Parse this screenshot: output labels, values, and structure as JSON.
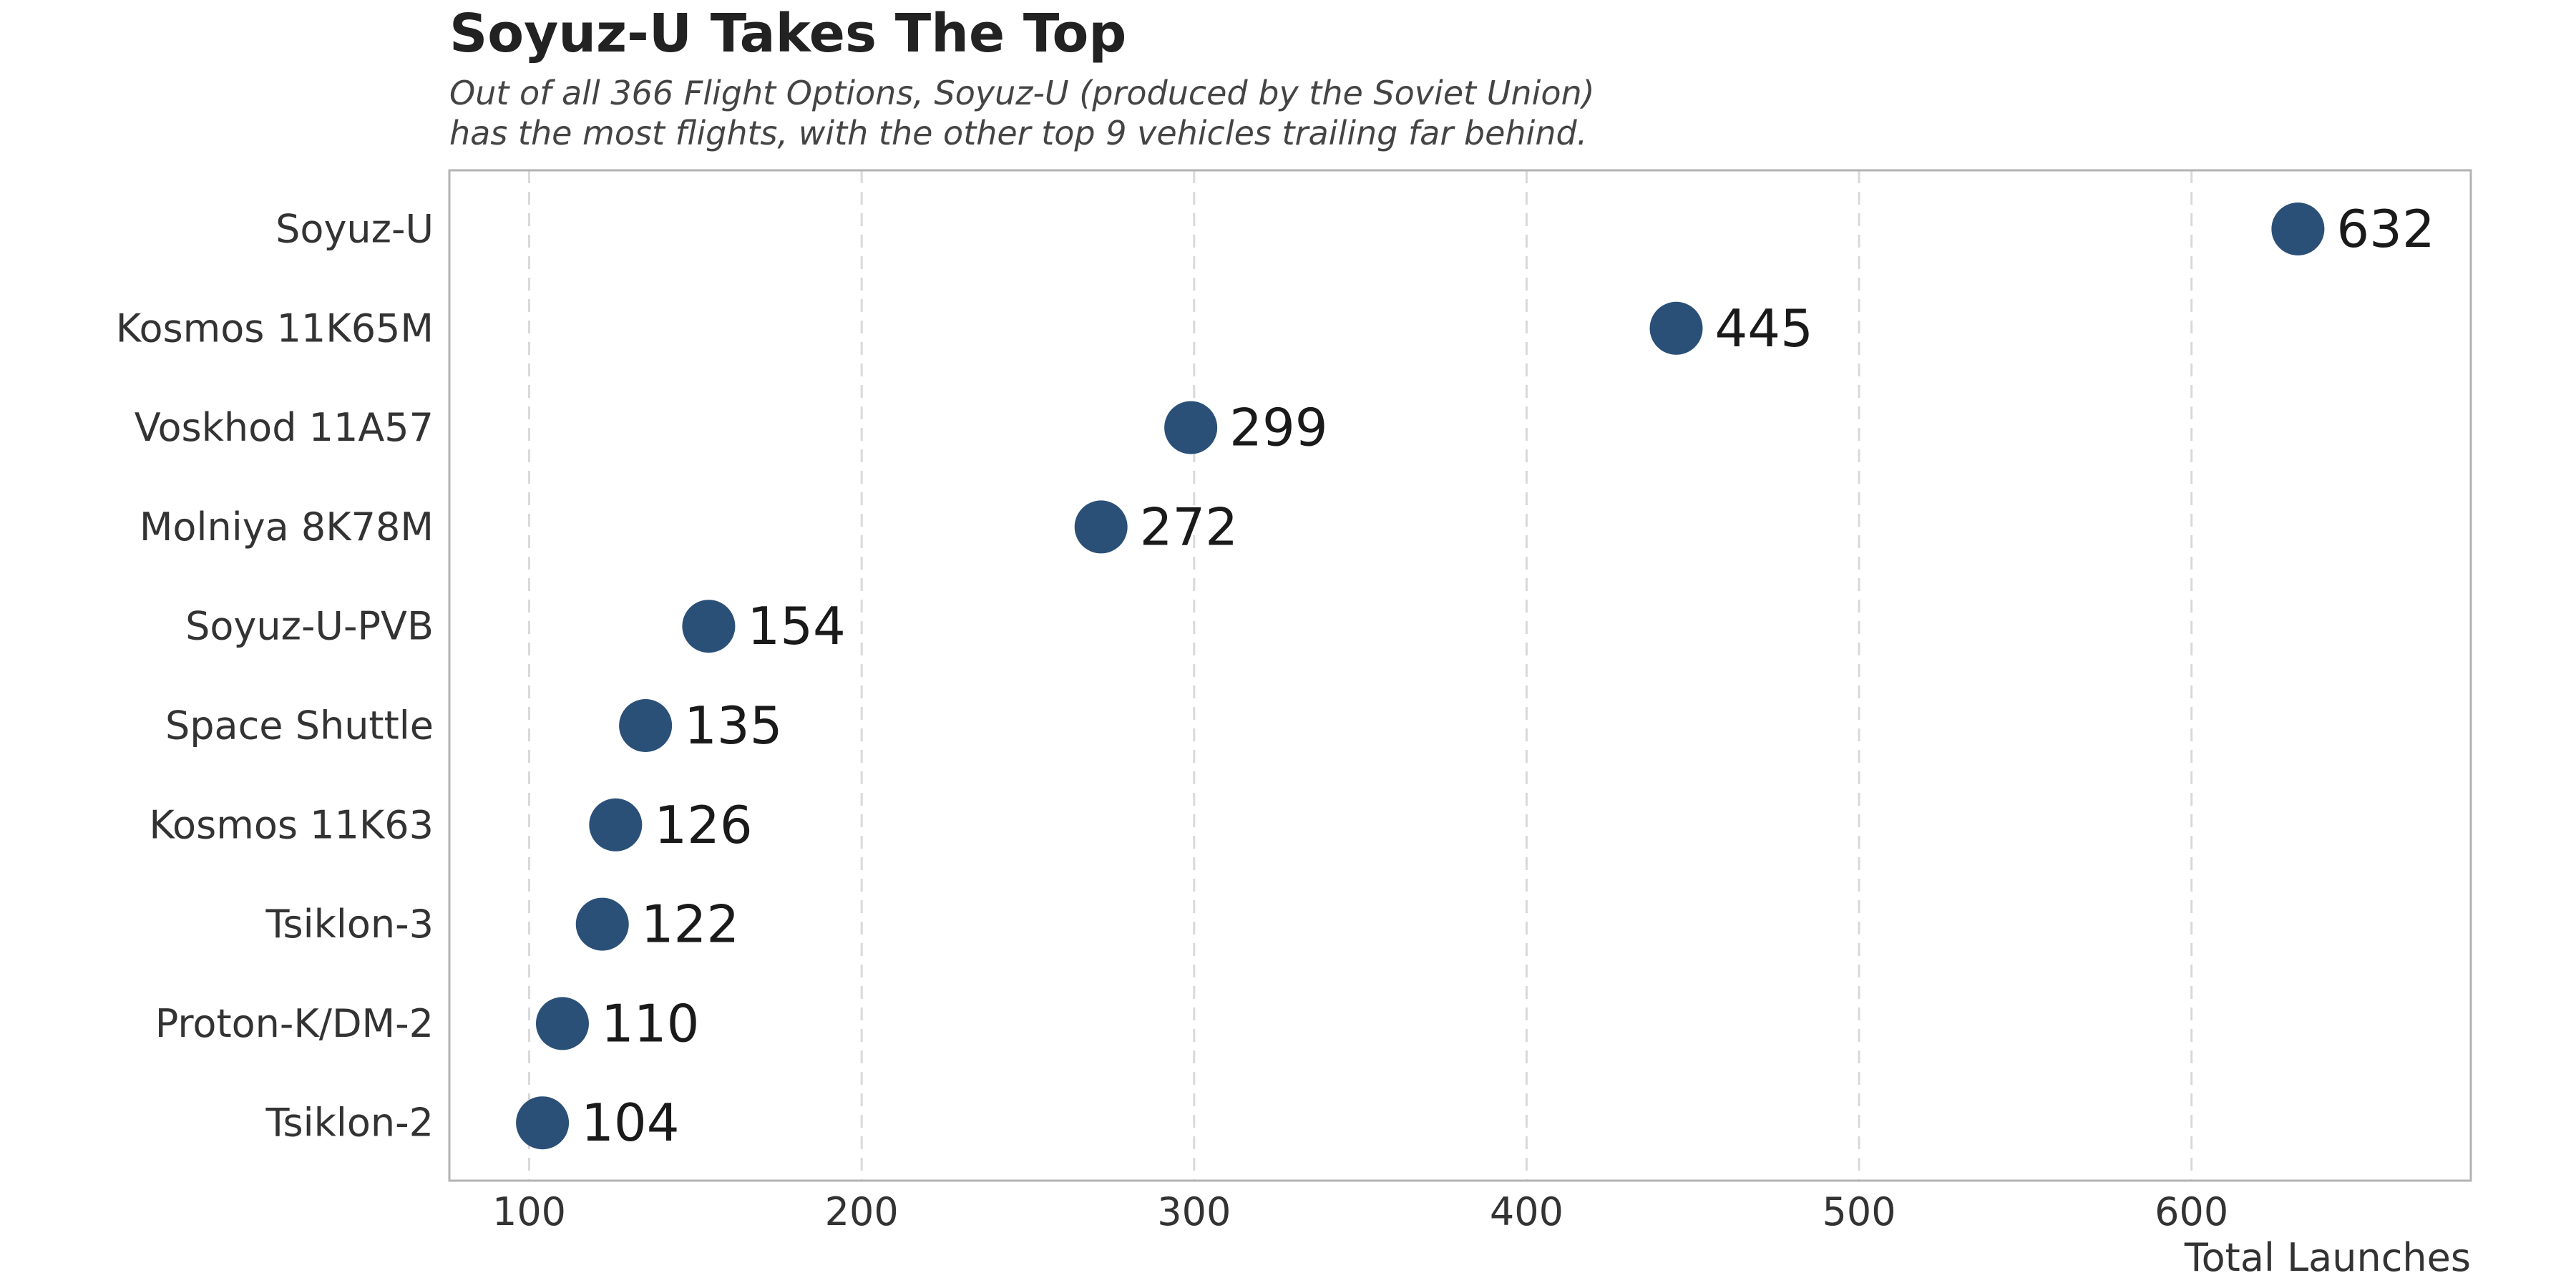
{
  "chart_data": {
    "type": "scatter",
    "title": "Soyuz-U Takes The Top",
    "subtitle_lines": [
      "Out of all 366 Flight Options, Soyuz-U (produced by the Soviet Union)",
      "has the most flights, with the other top 9 vehicles trailing far behind."
    ],
    "xlabel": "Total Launches",
    "ylabel": "",
    "xlim": [
      76,
      684
    ],
    "x_ticks": [
      100,
      200,
      300,
      400,
      500,
      600
    ],
    "categories": [
      "Soyuz-U",
      "Kosmos 11K65M",
      "Voskhod 11A57",
      "Molniya 8K78M",
      "Soyuz-U-PVB",
      "Space Shuttle",
      "Kosmos 11K63",
      "Tsiklon-3",
      "Proton-K/DM-2",
      "Tsiklon-2"
    ],
    "values": [
      632,
      445,
      299,
      272,
      154,
      135,
      126,
      122,
      110,
      104
    ],
    "grid": "vertical dashed",
    "point_color": "#2b5078",
    "panel_border_color": "#b3b3b3",
    "grid_color": "#d9d9d9"
  }
}
